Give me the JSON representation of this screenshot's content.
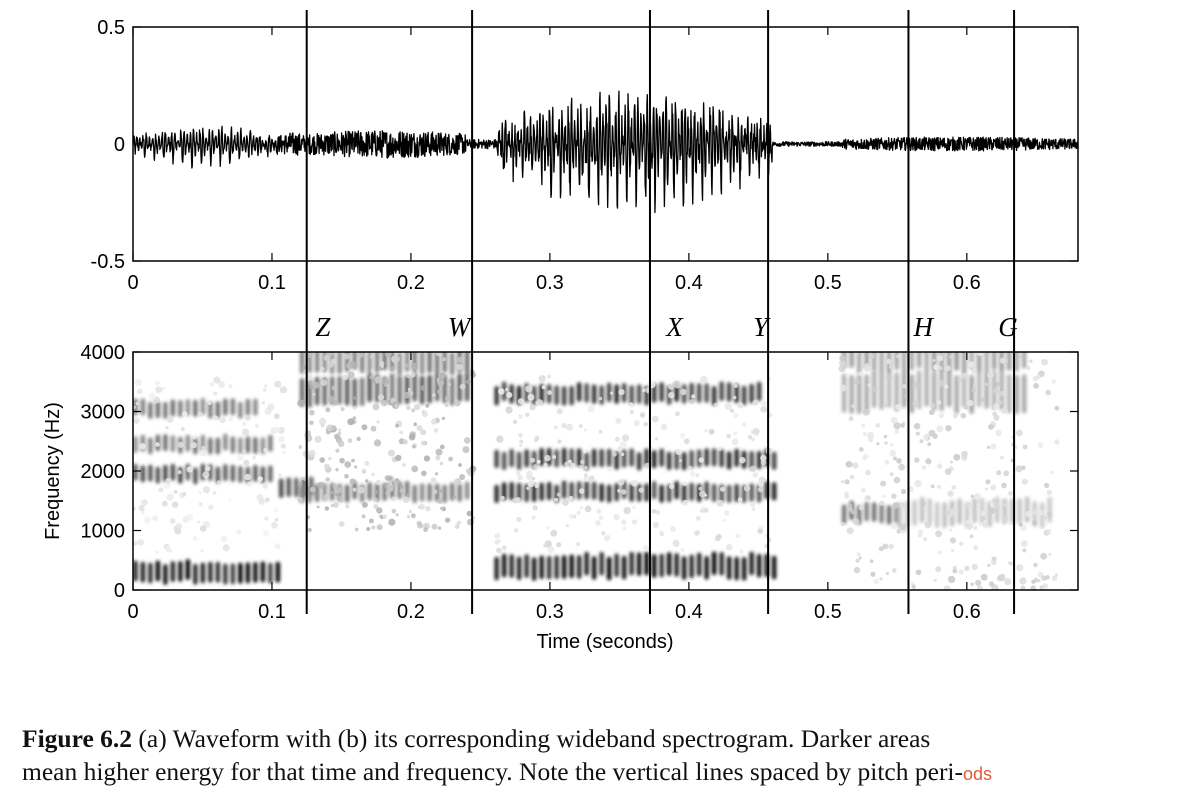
{
  "chart_data": [
    {
      "type": "line",
      "title": "",
      "xlabel": "",
      "ylabel": "",
      "xlim": [
        0,
        0.68
      ],
      "ylim": [
        -0.5,
        0.5
      ],
      "x_ticks": [
        0,
        0.1,
        0.2,
        0.3,
        0.4,
        0.5,
        0.6
      ],
      "x_tick_labels": [
        "0",
        "0.1",
        "0.2",
        "0.3",
        "0.4",
        "0.5",
        "0.6"
      ],
      "y_ticks": [
        0.5,
        0,
        -0.5
      ],
      "y_tick_labels": [
        "0.5",
        "0",
        "-0.5"
      ],
      "grid": false,
      "segments": [
        {
          "start": 0.0,
          "end": 0.105,
          "amplitude": 0.16,
          "kind": "voiced"
        },
        {
          "start": 0.105,
          "end": 0.125,
          "amplitude": 0.05,
          "kind": "transition"
        },
        {
          "start": 0.125,
          "end": 0.24,
          "amplitude": 0.06,
          "kind": "noise"
        },
        {
          "start": 0.24,
          "end": 0.262,
          "amplitude": 0.02,
          "kind": "quiet"
        },
        {
          "start": 0.262,
          "end": 0.46,
          "amplitude": 0.45,
          "kind": "voiced"
        },
        {
          "start": 0.46,
          "end": 0.51,
          "amplitude": 0.01,
          "kind": "quiet"
        },
        {
          "start": 0.51,
          "end": 0.68,
          "amplitude": 0.03,
          "kind": "noise"
        }
      ],
      "vertical_lines": [
        0.125,
        0.244,
        0.372,
        0.457,
        0.558,
        0.634
      ]
    },
    {
      "type": "heatmap",
      "title": "",
      "xlabel": "Time (seconds)",
      "ylabel": "Frequency (Hz)",
      "xlim": [
        0,
        0.68
      ],
      "ylim": [
        0,
        4000
      ],
      "x_ticks": [
        0,
        0.1,
        0.2,
        0.3,
        0.4,
        0.5,
        0.6
      ],
      "x_tick_labels": [
        "0",
        "0.1",
        "0.2",
        "0.3",
        "0.4",
        "0.5",
        "0.6"
      ],
      "y_ticks": [
        0,
        1000,
        2000,
        3000,
        4000
      ],
      "y_tick_labels": [
        "0",
        "1000",
        "2000",
        "3000",
        "4000"
      ],
      "grid": false,
      "colormap": "gray_r",
      "energy_bands": [
        {
          "t0": 0.0,
          "t1": 0.105,
          "f": 300,
          "bw": 160,
          "level": 0.95
        },
        {
          "t0": 0.0,
          "t1": 0.1,
          "f": 1950,
          "bw": 130,
          "level": 0.7
        },
        {
          "t0": 0.0,
          "t1": 0.1,
          "f": 2450,
          "bw": 130,
          "level": 0.55
        },
        {
          "t0": 0.0,
          "t1": 0.09,
          "f": 3050,
          "bw": 130,
          "level": 0.55
        },
        {
          "t0": 0.105,
          "t1": 0.13,
          "f": 1750,
          "bw": 150,
          "level": 0.7
        },
        {
          "t0": 0.12,
          "t1": 0.24,
          "f": 1650,
          "bw": 140,
          "level": 0.55
        },
        {
          "t0": 0.12,
          "t1": 0.24,
          "f": 3350,
          "bw": 220,
          "level": 0.65
        },
        {
          "t0": 0.12,
          "t1": 0.24,
          "f": 3850,
          "bw": 180,
          "level": 0.55
        },
        {
          "t0": 0.26,
          "t1": 0.46,
          "f": 400,
          "bw": 180,
          "level": 0.98
        },
        {
          "t0": 0.26,
          "t1": 0.46,
          "f": 1650,
          "bw": 140,
          "level": 0.85
        },
        {
          "t0": 0.26,
          "t1": 0.46,
          "f": 2200,
          "bw": 140,
          "level": 0.85
        },
        {
          "t0": 0.26,
          "t1": 0.45,
          "f": 3300,
          "bw": 150,
          "level": 0.85
        },
        {
          "t0": 0.51,
          "t1": 0.55,
          "f": 1300,
          "bw": 150,
          "level": 0.6
        },
        {
          "t0": 0.51,
          "t1": 0.64,
          "f": 3350,
          "bw": 300,
          "level": 0.35
        },
        {
          "t0": 0.51,
          "t1": 0.64,
          "f": 3900,
          "bw": 200,
          "level": 0.4
        },
        {
          "t0": 0.55,
          "t1": 0.66,
          "f": 1300,
          "bw": 200,
          "level": 0.25
        }
      ],
      "vertical_lines": [
        0.125,
        0.244,
        0.372,
        0.457,
        0.558,
        0.634
      ],
      "annotations": [
        {
          "text": "Z",
          "x": 0.128
        },
        {
          "text": "W",
          "x": 0.226
        },
        {
          "text": "X",
          "x": 0.381
        },
        {
          "text": "Y",
          "x": 0.443
        },
        {
          "text": "H",
          "x": 0.56
        },
        {
          "text": "G",
          "x": 0.621
        }
      ]
    }
  ],
  "caption": {
    "label": "Figure 6.2",
    "line1_text": " (a) Waveform with (b) its corresponding wideband spectrogram. Darker areas",
    "line2_text": "mean higher energy for that time and frequency. Note the vertical lines spaced by pitch peri-",
    "line2_cut": "ods"
  }
}
